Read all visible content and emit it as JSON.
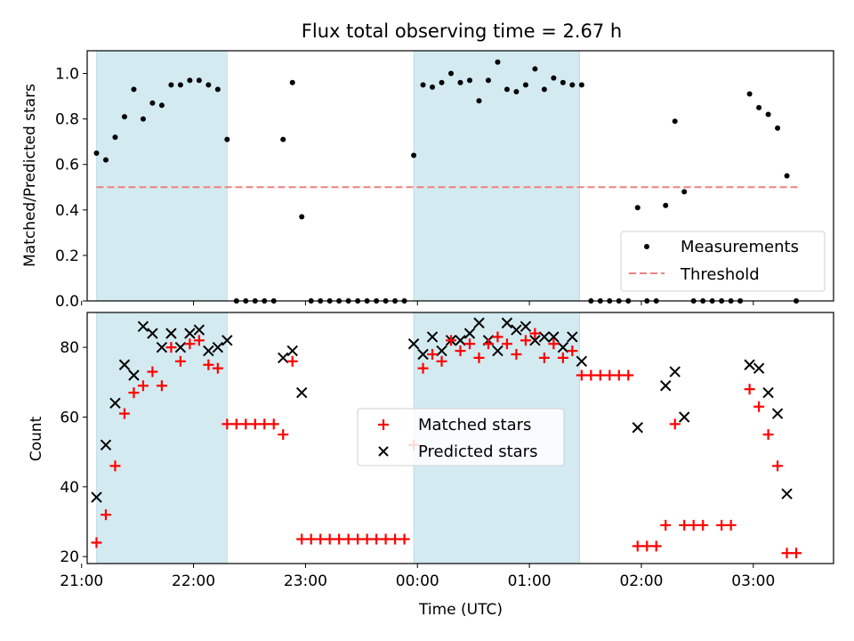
{
  "chart_data": [
    {
      "type": "scatter",
      "title": "Flux total observing time = 2.67 h",
      "ylabel": "Matched/Predicted stars",
      "xlabel": "",
      "xlim": [
        "21:03",
        "03:43"
      ],
      "ylim": [
        0,
        1.1
      ],
      "yticks": [
        "0.0",
        "0.2",
        "0.4",
        "0.6",
        "0.8",
        "1.0"
      ],
      "xticks": [
        "21:00",
        "22:00",
        "23:00",
        "00:00",
        "01:00",
        "02:00",
        "03:00"
      ],
      "shaded_intervals": [
        [
          "21:08",
          "22:18"
        ],
        [
          "23:58",
          "01:27"
        ]
      ],
      "shade_color": "#d3eaf0",
      "threshold": {
        "name": "Threshold",
        "value": 0.5,
        "x": [
          "21:08",
          "03:25"
        ],
        "color": "#f08080"
      },
      "series": [
        {
          "name": "Measurements",
          "color": "#000000",
          "points": [
            [
              "21:08",
              0.65
            ],
            [
              "21:13",
              0.62
            ],
            [
              "21:18",
              0.72
            ],
            [
              "21:23",
              0.81
            ],
            [
              "21:28",
              0.93
            ],
            [
              "21:33",
              0.8
            ],
            [
              "21:38",
              0.87
            ],
            [
              "21:43",
              0.86
            ],
            [
              "21:48",
              0.95
            ],
            [
              "21:53",
              0.95
            ],
            [
              "21:58",
              0.97
            ],
            [
              "22:03",
              0.97
            ],
            [
              "22:08",
              0.95
            ],
            [
              "22:13",
              0.93
            ],
            [
              "22:18",
              0.71
            ],
            [
              "22:23",
              0.0
            ],
            [
              "22:28",
              0.0
            ],
            [
              "22:33",
              0.0
            ],
            [
              "22:38",
              0.0
            ],
            [
              "22:43",
              0.0
            ],
            [
              "22:48",
              0.71
            ],
            [
              "22:53",
              0.96
            ],
            [
              "22:58",
              0.37
            ],
            [
              "23:03",
              0.0
            ],
            [
              "23:08",
              0.0
            ],
            [
              "23:13",
              0.0
            ],
            [
              "23:18",
              0.0
            ],
            [
              "23:23",
              0.0
            ],
            [
              "23:28",
              0.0
            ],
            [
              "23:33",
              0.0
            ],
            [
              "23:38",
              0.0
            ],
            [
              "23:43",
              0.0
            ],
            [
              "23:48",
              0.0
            ],
            [
              "23:53",
              0.0
            ],
            [
              "23:58",
              0.64
            ],
            [
              "00:03",
              0.95
            ],
            [
              "00:08",
              0.94
            ],
            [
              "00:13",
              0.96
            ],
            [
              "00:18",
              1.0
            ],
            [
              "00:23",
              0.96
            ],
            [
              "00:28",
              0.97
            ],
            [
              "00:33",
              0.88
            ],
            [
              "00:38",
              0.97
            ],
            [
              "00:43",
              1.05
            ],
            [
              "00:48",
              0.93
            ],
            [
              "00:53",
              0.92
            ],
            [
              "00:58",
              0.95
            ],
            [
              "01:03",
              1.02
            ],
            [
              "01:08",
              0.93
            ],
            [
              "01:13",
              0.98
            ],
            [
              "01:18",
              0.96
            ],
            [
              "01:23",
              0.95
            ],
            [
              "01:28",
              0.95
            ],
            [
              "01:33",
              0.0
            ],
            [
              "01:38",
              0.0
            ],
            [
              "01:43",
              0.0
            ],
            [
              "01:48",
              0.0
            ],
            [
              "01:53",
              0.0
            ],
            [
              "01:58",
              0.41
            ],
            [
              "02:03",
              0.0
            ],
            [
              "02:08",
              0.0
            ],
            [
              "02:13",
              0.42
            ],
            [
              "02:18",
              0.79
            ],
            [
              "02:23",
              0.48
            ],
            [
              "02:28",
              0.0
            ],
            [
              "02:33",
              0.0
            ],
            [
              "02:38",
              0.0
            ],
            [
              "02:43",
              0.0
            ],
            [
              "02:48",
              0.0
            ],
            [
              "02:53",
              0.0
            ],
            [
              "02:58",
              0.91
            ],
            [
              "03:03",
              0.85
            ],
            [
              "03:08",
              0.82
            ],
            [
              "03:13",
              0.76
            ],
            [
              "03:18",
              0.55
            ],
            [
              "03:23",
              0.0
            ]
          ]
        }
      ],
      "legend": {
        "position": "lower right",
        "entries": [
          "Measurements",
          "Threshold"
        ]
      }
    },
    {
      "type": "scatter",
      "title": "",
      "xlabel": "Time (UTC)",
      "ylabel": "Count",
      "xlim": [
        "21:03",
        "03:43"
      ],
      "ylim": [
        18,
        90
      ],
      "yticks": [
        "20",
        "40",
        "60",
        "80"
      ],
      "xticks": [
        "21:00",
        "22:00",
        "23:00",
        "00:00",
        "01:00",
        "02:00",
        "03:00"
      ],
      "shaded_intervals": [
        [
          "21:08",
          "22:18"
        ],
        [
          "23:58",
          "01:27"
        ]
      ],
      "series": [
        {
          "name": "Matched stars",
          "marker": "+",
          "color": "#ff0000",
          "points": [
            [
              "21:08",
              24
            ],
            [
              "21:13",
              32
            ],
            [
              "21:18",
              46
            ],
            [
              "21:23",
              61
            ],
            [
              "21:28",
              67
            ],
            [
              "21:33",
              69
            ],
            [
              "21:38",
              73
            ],
            [
              "21:43",
              69
            ],
            [
              "21:48",
              80
            ],
            [
              "21:53",
              76
            ],
            [
              "21:58",
              81
            ],
            [
              "22:03",
              82
            ],
            [
              "22:08",
              75
            ],
            [
              "22:13",
              74
            ],
            [
              "22:18",
              58
            ],
            [
              "22:23",
              58
            ],
            [
              "22:28",
              58
            ],
            [
              "22:33",
              58
            ],
            [
              "22:38",
              58
            ],
            [
              "22:43",
              58
            ],
            [
              "22:48",
              55
            ],
            [
              "22:53",
              76
            ],
            [
              "22:58",
              25
            ],
            [
              "23:03",
              25
            ],
            [
              "23:08",
              25
            ],
            [
              "23:13",
              25
            ],
            [
              "23:18",
              25
            ],
            [
              "23:23",
              25
            ],
            [
              "23:28",
              25
            ],
            [
              "23:33",
              25
            ],
            [
              "23:38",
              25
            ],
            [
              "23:43",
              25
            ],
            [
              "23:48",
              25
            ],
            [
              "23:53",
              25
            ],
            [
              "23:58",
              52
            ],
            [
              "00:03",
              74
            ],
            [
              "00:08",
              78
            ],
            [
              "00:13",
              76
            ],
            [
              "00:18",
              82
            ],
            [
              "00:23",
              79
            ],
            [
              "00:28",
              81
            ],
            [
              "00:33",
              77
            ],
            [
              "00:38",
              81
            ],
            [
              "00:43",
              83
            ],
            [
              "00:48",
              81
            ],
            [
              "00:53",
              78
            ],
            [
              "00:58",
              82
            ],
            [
              "01:03",
              84
            ],
            [
              "01:08",
              77
            ],
            [
              "01:13",
              81
            ],
            [
              "01:18",
              77
            ],
            [
              "01:23",
              79
            ],
            [
              "01:28",
              72
            ],
            [
              "01:33",
              72
            ],
            [
              "01:38",
              72
            ],
            [
              "01:43",
              72
            ],
            [
              "01:48",
              72
            ],
            [
              "01:53",
              72
            ],
            [
              "01:58",
              23
            ],
            [
              "02:03",
              23
            ],
            [
              "02:08",
              23
            ],
            [
              "02:13",
              29
            ],
            [
              "02:18",
              58
            ],
            [
              "02:23",
              29
            ],
            [
              "02:28",
              29
            ],
            [
              "02:33",
              29
            ],
            [
              "02:43",
              29
            ],
            [
              "02:48",
              29
            ],
            [
              "02:58",
              68
            ],
            [
              "03:03",
              63
            ],
            [
              "03:08",
              55
            ],
            [
              "03:13",
              46
            ],
            [
              "03:18",
              21
            ],
            [
              "03:23",
              21
            ]
          ]
        },
        {
          "name": "Predicted stars",
          "marker": "x",
          "color": "#000000",
          "points": [
            [
              "21:08",
              37
            ],
            [
              "21:13",
              52
            ],
            [
              "21:18",
              64
            ],
            [
              "21:23",
              75
            ],
            [
              "21:28",
              72
            ],
            [
              "21:33",
              86
            ],
            [
              "21:38",
              84
            ],
            [
              "21:43",
              80
            ],
            [
              "21:48",
              84
            ],
            [
              "21:53",
              80
            ],
            [
              "21:58",
              84
            ],
            [
              "22:03",
              85
            ],
            [
              "22:08",
              79
            ],
            [
              "22:13",
              80
            ],
            [
              "22:18",
              82
            ],
            [
              "22:48",
              77
            ],
            [
              "22:53",
              79
            ],
            [
              "22:58",
              67
            ],
            [
              "23:58",
              81
            ],
            [
              "00:03",
              78
            ],
            [
              "00:08",
              83
            ],
            [
              "00:13",
              79
            ],
            [
              "00:18",
              82
            ],
            [
              "00:23",
              82
            ],
            [
              "00:28",
              84
            ],
            [
              "00:33",
              87
            ],
            [
              "00:38",
              82
            ],
            [
              "00:43",
              79
            ],
            [
              "00:48",
              87
            ],
            [
              "00:53",
              85
            ],
            [
              "00:58",
              86
            ],
            [
              "01:03",
              82
            ],
            [
              "01:08",
              83
            ],
            [
              "01:13",
              83
            ],
            [
              "01:18",
              80
            ],
            [
              "01:23",
              83
            ],
            [
              "01:28",
              76
            ],
            [
              "01:58",
              57
            ],
            [
              "02:13",
              69
            ],
            [
              "02:18",
              73
            ],
            [
              "02:23",
              60
            ],
            [
              "02:58",
              75
            ],
            [
              "03:03",
              74
            ],
            [
              "03:08",
              67
            ],
            [
              "03:13",
              61
            ],
            [
              "03:18",
              38
            ]
          ]
        }
      ],
      "legend": {
        "position": "center",
        "entries": [
          "Matched stars",
          "Predicted stars"
        ]
      }
    }
  ]
}
